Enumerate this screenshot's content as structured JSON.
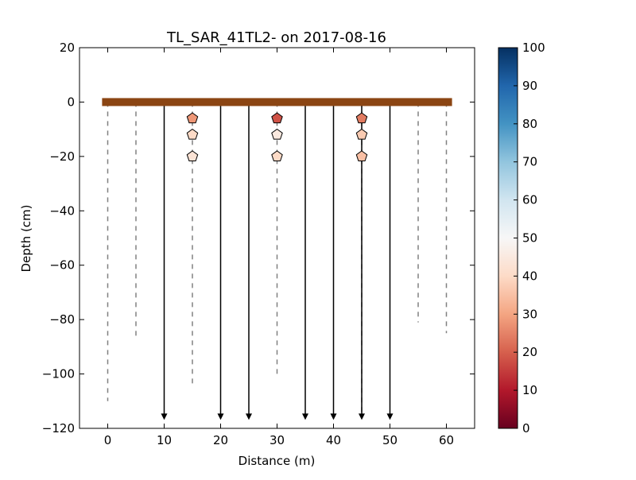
{
  "chart_data": {
    "type": "scatter",
    "title": "TL_SAR_41TL2-  on 2017-08-16",
    "xlabel": "Distance (m)",
    "ylabel": "Depth (cm)",
    "xlim": [
      -5,
      65
    ],
    "ylim": [
      -120,
      20
    ],
    "x_ticks": [
      0,
      10,
      20,
      30,
      40,
      50,
      60
    ],
    "y_ticks": [
      20,
      0,
      -20,
      -40,
      -60,
      -80,
      -100,
      -120
    ],
    "grid": false,
    "surface": {
      "x_start": -1,
      "x_end": 61,
      "depth": 0,
      "color": "#8b4513"
    },
    "probe_profiles": [
      {
        "x": 0,
        "depth": -110,
        "style": "dashed"
      },
      {
        "x": 5,
        "depth": -86,
        "style": "dashed"
      },
      {
        "x": 15,
        "depth": -105,
        "style": "dashed"
      },
      {
        "x": 30,
        "depth": -100,
        "style": "dashed"
      },
      {
        "x": 45,
        "depth": -115,
        "style": "dashed"
      },
      {
        "x": 55,
        "depth": -81,
        "style": "dashed"
      },
      {
        "x": 60,
        "depth": -85,
        "style": "dashed"
      }
    ],
    "refusal_arrows": [
      {
        "x": 10,
        "depth": -116
      },
      {
        "x": 20,
        "depth": -116
      },
      {
        "x": 25,
        "depth": -116
      },
      {
        "x": 35,
        "depth": -116
      },
      {
        "x": 40,
        "depth": -116
      },
      {
        "x": 45,
        "depth": -116
      },
      {
        "x": 50,
        "depth": -116
      }
    ],
    "points": [
      {
        "x": 15,
        "y": -6,
        "value": 28
      },
      {
        "x": 15,
        "y": -12,
        "value": 40
      },
      {
        "x": 15,
        "y": -20,
        "value": 43
      },
      {
        "x": 30,
        "y": -6,
        "value": 18
      },
      {
        "x": 30,
        "y": -12,
        "value": 45
      },
      {
        "x": 30,
        "y": -20,
        "value": 40
      },
      {
        "x": 45,
        "y": -6,
        "value": 24
      },
      {
        "x": 45,
        "y": -12,
        "value": 37
      },
      {
        "x": 45,
        "y": -20,
        "value": 35
      }
    ],
    "marker": "pentagon",
    "colorbar": {
      "colormap": "RdBu",
      "min": 0,
      "max": 100,
      "ticks": [
        0,
        10,
        20,
        30,
        40,
        50,
        60,
        70,
        80,
        90,
        100
      ]
    }
  }
}
